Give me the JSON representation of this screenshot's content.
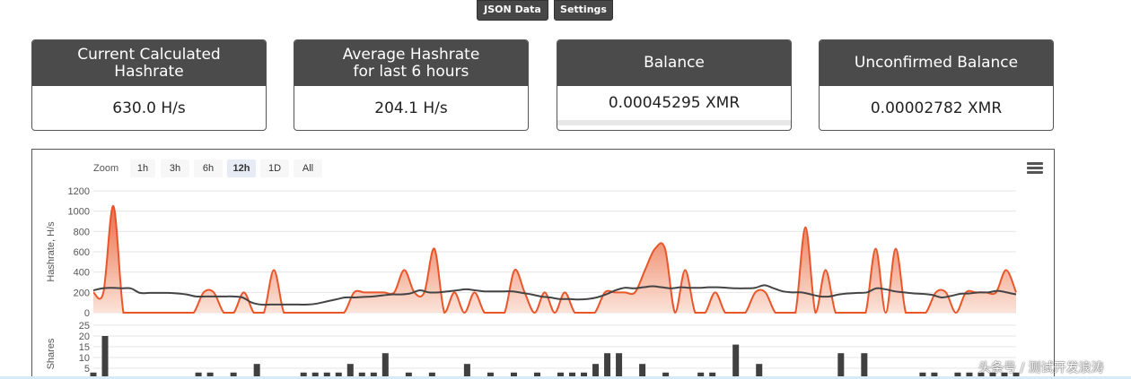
{
  "toolbar": {
    "json_label": "JSON Data",
    "settings_label": "Settings"
  },
  "cards": [
    {
      "title_line1": "Current Calculated",
      "title_line2": "Hashrate",
      "value": "630.0 H/s"
    },
    {
      "title_line1": "Average Hashrate",
      "title_line2": "for last 6 hours",
      "value": "204.1 H/s"
    },
    {
      "title_line1": "Balance",
      "title_line2": "",
      "value": "0.00045295 XMR"
    },
    {
      "title_line1": "Unconfirmed Balance",
      "title_line2": "",
      "value": "0.00002782 XMR"
    }
  ],
  "chart": {
    "zoom_label": "Zoom",
    "zoom_options": [
      "1h",
      "3h",
      "6h",
      "12h",
      "1D",
      "All"
    ],
    "zoom_selected": "12h",
    "menu_icon": "hamburger-menu-icon"
  },
  "chart_data": {
    "type": "area",
    "colors": {
      "hashrate_area": "#f4a582",
      "hashrate_line": "#e8562a",
      "average_line": "#444444",
      "shares_bar": "#404040"
    },
    "hashrate": {
      "ylabel": "Hashrate, H/s",
      "ylim": [
        0,
        1200
      ],
      "yticks": [
        0,
        200,
        400,
        600,
        800,
        1000,
        1200
      ],
      "series_values": [
        200,
        200,
        1050,
        0,
        0,
        0,
        0,
        0,
        0,
        0,
        0,
        200,
        200,
        0,
        0,
        200,
        0,
        0,
        420,
        0,
        0,
        0,
        0,
        0,
        0,
        0,
        200,
        200,
        200,
        200,
        200,
        420,
        200,
        200,
        630,
        0,
        200,
        0,
        200,
        0,
        0,
        0,
        420,
        200,
        0,
        200,
        0,
        200,
        0,
        0,
        0,
        200,
        200,
        200,
        200,
        420,
        630,
        630,
        0,
        420,
        0,
        0,
        200,
        0,
        0,
        0,
        200,
        200,
        0,
        0,
        0,
        840,
        0,
        420,
        0,
        0,
        0,
        0,
        630,
        0,
        630,
        0,
        0,
        0,
        200,
        200,
        0,
        200,
        200,
        200,
        200,
        420,
        200
      ],
      "average_values": [
        220,
        240,
        245,
        240,
        240,
        195,
        195,
        195,
        195,
        190,
        180,
        160,
        160,
        160,
        160,
        160,
        150,
        100,
        80,
        80,
        80,
        80,
        80,
        80,
        90,
        110,
        130,
        150,
        150,
        155,
        160,
        170,
        180,
        180,
        190,
        220,
        200,
        200,
        210,
        220,
        230,
        220,
        210,
        210,
        210,
        210,
        195,
        180,
        160,
        150,
        135,
        135,
        130,
        135,
        150,
        180,
        220,
        245,
        240,
        250,
        260,
        250,
        240,
        250,
        245,
        245,
        250,
        250,
        245,
        240,
        240,
        245,
        270,
        240,
        210,
        200,
        200,
        180,
        160,
        160,
        180,
        190,
        195,
        200,
        240,
        230,
        210,
        200,
        190,
        185,
        175,
        150,
        165,
        185,
        190,
        200,
        200,
        215,
        200,
        180
      ]
    },
    "shares": {
      "ylabel": "Shares",
      "ylim": [
        0,
        25
      ],
      "yticks": [
        5,
        10,
        15,
        20,
        25
      ],
      "values": [
        3,
        20,
        0,
        0,
        0,
        0,
        0,
        0,
        0,
        3,
        3,
        0,
        3,
        0,
        7,
        0,
        0,
        0,
        3,
        3,
        3,
        3,
        7,
        3,
        3,
        12,
        0,
        3,
        0,
        3,
        0,
        0,
        7,
        0,
        3,
        0,
        3,
        0,
        3,
        0,
        3,
        3,
        3,
        7,
        12,
        12,
        0,
        7,
        0,
        3,
        0,
        0,
        3,
        3,
        0,
        16,
        0,
        7,
        0,
        0,
        0,
        0,
        0,
        0,
        12,
        0,
        12,
        0,
        0,
        0,
        0,
        3,
        3,
        0,
        3,
        3,
        3,
        3,
        3,
        3
      ]
    }
  },
  "watermark": "头条号 / 测试开发浪涛"
}
